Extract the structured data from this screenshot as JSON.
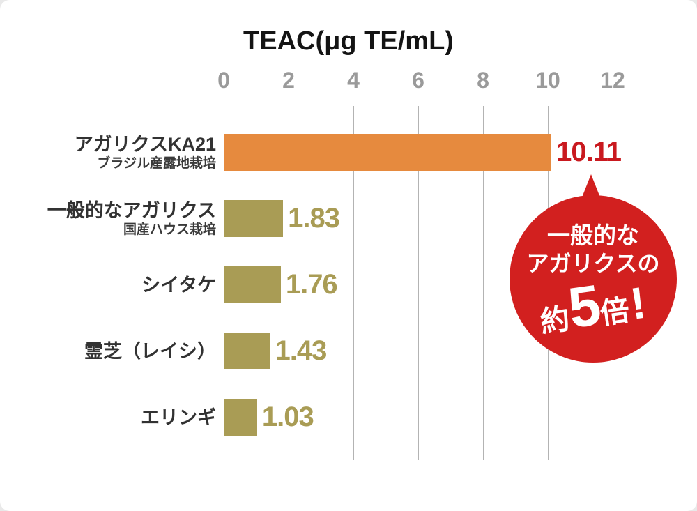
{
  "chart_data": {
    "type": "bar",
    "orientation": "horizontal",
    "title": "TEAC(μg TE/mL)",
    "xlabel": "TEAC(μg TE/mL)",
    "ylabel": "",
    "xlim": [
      0,
      12
    ],
    "x_ticks": [
      0,
      2,
      4,
      6,
      8,
      10,
      12
    ],
    "grid": true,
    "legend": "none",
    "rows": [
      {
        "label": "アガリクスKA21",
        "sublabel": "ブラジル産露地栽培",
        "value": 10.11,
        "value_label": "10.11",
        "bar_color": "#E68A3E",
        "value_color": "#C9191F"
      },
      {
        "label": "一般的なアガリクス",
        "sublabel": "国産ハウス栽培",
        "value": 1.83,
        "value_label": "1.83",
        "bar_color": "#A99C55",
        "value_color": "#A99C55"
      },
      {
        "label": "シイタケ",
        "sublabel": "",
        "value": 1.76,
        "value_label": "1.76",
        "bar_color": "#A99C55",
        "value_color": "#A99C55"
      },
      {
        "label": "霊芝（レイシ）",
        "sublabel": "",
        "value": 1.43,
        "value_label": "1.43",
        "bar_color": "#A99C55",
        "value_color": "#A99C55"
      },
      {
        "label": "エリンギ",
        "sublabel": "",
        "value": 1.03,
        "value_label": "1.03",
        "bar_color": "#A99C55",
        "value_color": "#A99C55"
      }
    ]
  },
  "badge": {
    "line1": "一般的な",
    "line2": "アガリクスの",
    "approx": "約",
    "number": "5",
    "unit": "倍",
    "exclaim": "!",
    "bg": "#D2201F",
    "text_color": "#FFFFFF"
  },
  "colors": {
    "accent_orange": "#E68A3E",
    "olive": "#A99C55",
    "highlight_red": "#C9191F",
    "badge_red": "#D2201F",
    "tick_gray": "#9A9A9A",
    "gridline_gray": "#B3B3B3",
    "label_dark": "#323232",
    "background": "#FFFFFF"
  }
}
